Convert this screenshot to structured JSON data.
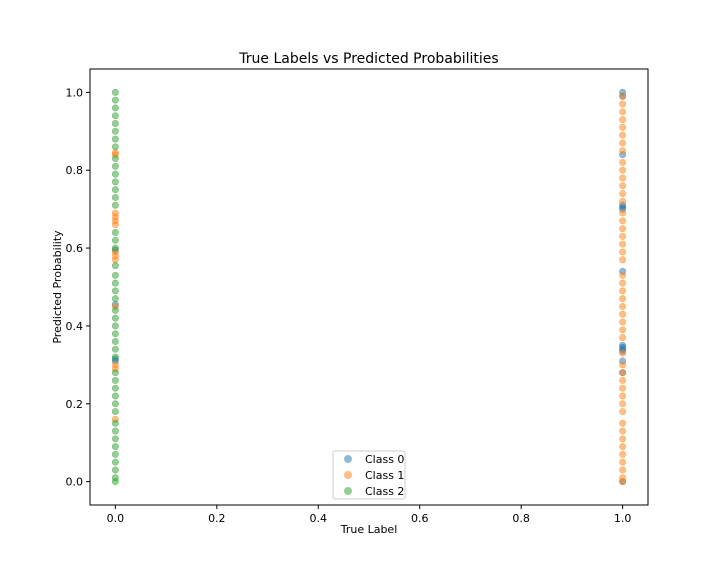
{
  "chart_data": {
    "type": "scatter",
    "title": "True Labels vs Predicted Probabilities",
    "xlabel": "True Label",
    "ylabel": "Predicted Probability",
    "xlim": [
      -0.05,
      1.05
    ],
    "ylim": [
      -0.06,
      1.06
    ],
    "xticks": [
      0.0,
      0.2,
      0.4,
      0.6,
      0.8,
      1.0
    ],
    "xtick_labels": [
      "0.0",
      "0.2",
      "0.4",
      "0.6",
      "0.8",
      "1.0"
    ],
    "yticks": [
      0.0,
      0.2,
      0.4,
      0.6,
      0.8,
      1.0
    ],
    "ytick_labels": [
      "0.0",
      "0.2",
      "0.4",
      "0.6",
      "0.8",
      "1.0"
    ],
    "grid": false,
    "legend_position": "lower-center",
    "marker_alpha": 0.5,
    "series": [
      {
        "name": "Class 0",
        "color": "#1f77b4",
        "points": [
          {
            "x": 0,
            "y": 0.31
          },
          {
            "x": 0,
            "y": 0.315
          },
          {
            "x": 0,
            "y": 0.455
          },
          {
            "x": 0,
            "y": 0.595
          },
          {
            "x": 1,
            "y": 1.0
          },
          {
            "x": 1,
            "y": 0.99
          },
          {
            "x": 1,
            "y": 0.84
          },
          {
            "x": 1,
            "y": 0.71
          },
          {
            "x": 1,
            "y": 0.705
          },
          {
            "x": 1,
            "y": 0.7
          },
          {
            "x": 1,
            "y": 0.54
          },
          {
            "x": 1,
            "y": 0.35
          },
          {
            "x": 1,
            "y": 0.345
          },
          {
            "x": 1,
            "y": 0.34
          },
          {
            "x": 1,
            "y": 0.335
          },
          {
            "x": 1,
            "y": 0.31
          },
          {
            "x": 1,
            "y": 0.28
          },
          {
            "x": 1,
            "y": 0.0
          }
        ]
      },
      {
        "name": "Class 1",
        "color": "#ff7f0e",
        "points": [
          {
            "x": 0,
            "y": 0.845
          },
          {
            "x": 0,
            "y": 0.84
          },
          {
            "x": 0,
            "y": 0.69
          },
          {
            "x": 0,
            "y": 0.68
          },
          {
            "x": 0,
            "y": 0.67
          },
          {
            "x": 0,
            "y": 0.66
          },
          {
            "x": 0,
            "y": 0.59
          },
          {
            "x": 0,
            "y": 0.58
          },
          {
            "x": 0,
            "y": 0.57
          },
          {
            "x": 0,
            "y": 0.45
          },
          {
            "x": 0,
            "y": 0.3
          },
          {
            "x": 0,
            "y": 0.29
          },
          {
            "x": 0,
            "y": 0.16
          },
          {
            "x": 1,
            "y": 0.99
          },
          {
            "x": 1,
            "y": 0.97
          },
          {
            "x": 1,
            "y": 0.95
          },
          {
            "x": 1,
            "y": 0.93
          },
          {
            "x": 1,
            "y": 0.91
          },
          {
            "x": 1,
            "y": 0.89
          },
          {
            "x": 1,
            "y": 0.87
          },
          {
            "x": 1,
            "y": 0.85
          },
          {
            "x": 1,
            "y": 0.82
          },
          {
            "x": 1,
            "y": 0.8
          },
          {
            "x": 1,
            "y": 0.78
          },
          {
            "x": 1,
            "y": 0.76
          },
          {
            "x": 1,
            "y": 0.74
          },
          {
            "x": 1,
            "y": 0.72
          },
          {
            "x": 1,
            "y": 0.69
          },
          {
            "x": 1,
            "y": 0.67
          },
          {
            "x": 1,
            "y": 0.65
          },
          {
            "x": 1,
            "y": 0.63
          },
          {
            "x": 1,
            "y": 0.61
          },
          {
            "x": 1,
            "y": 0.59
          },
          {
            "x": 1,
            "y": 0.57
          },
          {
            "x": 1,
            "y": 0.53
          },
          {
            "x": 1,
            "y": 0.51
          },
          {
            "x": 1,
            "y": 0.49
          },
          {
            "x": 1,
            "y": 0.47
          },
          {
            "x": 1,
            "y": 0.45
          },
          {
            "x": 1,
            "y": 0.43
          },
          {
            "x": 1,
            "y": 0.41
          },
          {
            "x": 1,
            "y": 0.39
          },
          {
            "x": 1,
            "y": 0.37
          },
          {
            "x": 1,
            "y": 0.33
          },
          {
            "x": 1,
            "y": 0.3
          },
          {
            "x": 1,
            "y": 0.28
          },
          {
            "x": 1,
            "y": 0.26
          },
          {
            "x": 1,
            "y": 0.24
          },
          {
            "x": 1,
            "y": 0.22
          },
          {
            "x": 1,
            "y": 0.2
          },
          {
            "x": 1,
            "y": 0.18
          },
          {
            "x": 1,
            "y": 0.15
          },
          {
            "x": 1,
            "y": 0.13
          },
          {
            "x": 1,
            "y": 0.11
          },
          {
            "x": 1,
            "y": 0.09
          },
          {
            "x": 1,
            "y": 0.07
          },
          {
            "x": 1,
            "y": 0.05
          },
          {
            "x": 1,
            "y": 0.03
          },
          {
            "x": 1,
            "y": 0.01
          },
          {
            "x": 1,
            "y": 0.0
          }
        ]
      },
      {
        "name": "Class 2",
        "color": "#2ca02c",
        "points": [
          {
            "x": 0,
            "y": 1.0
          },
          {
            "x": 0,
            "y": 0.98
          },
          {
            "x": 0,
            "y": 0.96
          },
          {
            "x": 0,
            "y": 0.94
          },
          {
            "x": 0,
            "y": 0.92
          },
          {
            "x": 0,
            "y": 0.9
          },
          {
            "x": 0,
            "y": 0.88
          },
          {
            "x": 0,
            "y": 0.86
          },
          {
            "x": 0,
            "y": 0.83
          },
          {
            "x": 0,
            "y": 0.81
          },
          {
            "x": 0,
            "y": 0.79
          },
          {
            "x": 0,
            "y": 0.77
          },
          {
            "x": 0,
            "y": 0.75
          },
          {
            "x": 0,
            "y": 0.73
          },
          {
            "x": 0,
            "y": 0.71
          },
          {
            "x": 0,
            "y": 0.64
          },
          {
            "x": 0,
            "y": 0.62
          },
          {
            "x": 0,
            "y": 0.6
          },
          {
            "x": 0,
            "y": 0.555
          },
          {
            "x": 0,
            "y": 0.53
          },
          {
            "x": 0,
            "y": 0.51
          },
          {
            "x": 0,
            "y": 0.49
          },
          {
            "x": 0,
            "y": 0.47
          },
          {
            "x": 0,
            "y": 0.44
          },
          {
            "x": 0,
            "y": 0.42
          },
          {
            "x": 0,
            "y": 0.4
          },
          {
            "x": 0,
            "y": 0.38
          },
          {
            "x": 0,
            "y": 0.36
          },
          {
            "x": 0,
            "y": 0.34
          },
          {
            "x": 0,
            "y": 0.32
          },
          {
            "x": 0,
            "y": 0.28
          },
          {
            "x": 0,
            "y": 0.26
          },
          {
            "x": 0,
            "y": 0.24
          },
          {
            "x": 0,
            "y": 0.22
          },
          {
            "x": 0,
            "y": 0.2
          },
          {
            "x": 0,
            "y": 0.18
          },
          {
            "x": 0,
            "y": 0.15
          },
          {
            "x": 0,
            "y": 0.13
          },
          {
            "x": 0,
            "y": 0.11
          },
          {
            "x": 0,
            "y": 0.09
          },
          {
            "x": 0,
            "y": 0.07
          },
          {
            "x": 0,
            "y": 0.05
          },
          {
            "x": 0,
            "y": 0.03
          },
          {
            "x": 0,
            "y": 0.01
          },
          {
            "x": 0,
            "y": 0.0
          }
        ]
      }
    ]
  }
}
